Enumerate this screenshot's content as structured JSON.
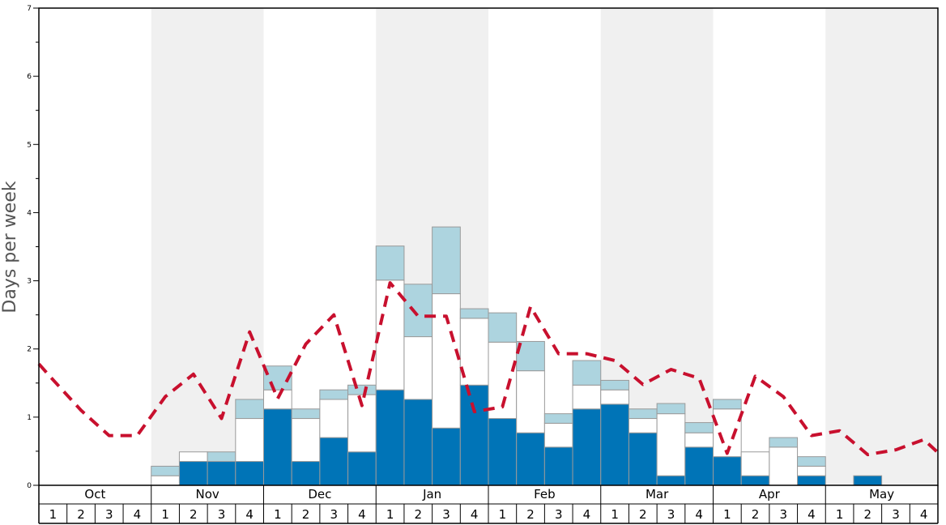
{
  "chart_data": {
    "type": "bar",
    "ylabel": "Days per week",
    "ylim": [
      0,
      7
    ],
    "yticks": [
      "0",
      "1",
      "2",
      "3",
      "4",
      "5",
      "6",
      "7"
    ],
    "months": [
      "Oct",
      "Nov",
      "Dec",
      "Jan",
      "Feb",
      "Mar",
      "Apr",
      "May"
    ],
    "week_labels": [
      "1",
      "2",
      "3",
      "4"
    ],
    "colors": {
      "dark_segment": "#0074b7",
      "white_segment": "#ffffff",
      "light_segment": "#add4df",
      "dashed_line": "#c8102e",
      "band_shade": "#f0f0f0"
    },
    "stacked_bars": [
      {
        "month": "Oct",
        "week": "1",
        "dark": 0,
        "white": 0,
        "light": 0
      },
      {
        "month": "Oct",
        "week": "2",
        "dark": 0,
        "white": 0,
        "light": 0
      },
      {
        "month": "Oct",
        "week": "3",
        "dark": 0,
        "white": 0,
        "light": 0
      },
      {
        "month": "Oct",
        "week": "4",
        "dark": 0,
        "white": 0,
        "light": 0
      },
      {
        "month": "Nov",
        "week": "1",
        "dark": 0,
        "white": 0.14,
        "light": 0.14
      },
      {
        "month": "Nov",
        "week": "2",
        "dark": 0.35,
        "white": 0.14,
        "light": 0
      },
      {
        "month": "Nov",
        "week": "3",
        "dark": 0.35,
        "white": 0,
        "light": 0.14
      },
      {
        "month": "Nov",
        "week": "4",
        "dark": 0.35,
        "white": 0.63,
        "light": 0.28
      },
      {
        "month": "Dec",
        "week": "1",
        "dark": 1.12,
        "white": 0.28,
        "light": 0.35
      },
      {
        "month": "Dec",
        "week": "2",
        "dark": 0.35,
        "white": 0.63,
        "light": 0.14
      },
      {
        "month": "Dec",
        "week": "3",
        "dark": 0.7,
        "white": 0.56,
        "light": 0.14
      },
      {
        "month": "Dec",
        "week": "4",
        "dark": 0.49,
        "white": 0.84,
        "light": 0.14
      },
      {
        "month": "Jan",
        "week": "1",
        "dark": 1.4,
        "white": 1.61,
        "light": 0.5
      },
      {
        "month": "Jan",
        "week": "2",
        "dark": 1.26,
        "white": 0.92,
        "light": 0.77
      },
      {
        "month": "Jan",
        "week": "3",
        "dark": 0.84,
        "white": 1.97,
        "light": 0.98
      },
      {
        "month": "Jan",
        "week": "4",
        "dark": 1.47,
        "white": 0.98,
        "light": 0.14
      },
      {
        "month": "Feb",
        "week": "1",
        "dark": 0.98,
        "white": 1.12,
        "light": 0.43
      },
      {
        "month": "Feb",
        "week": "2",
        "dark": 0.77,
        "white": 0.91,
        "light": 0.43
      },
      {
        "month": "Feb",
        "week": "3",
        "dark": 0.56,
        "white": 0.35,
        "light": 0.14
      },
      {
        "month": "Feb",
        "week": "4",
        "dark": 1.12,
        "white": 0.35,
        "light": 0.36
      },
      {
        "month": "Mar",
        "week": "1",
        "dark": 1.19,
        "white": 0.21,
        "light": 0.14
      },
      {
        "month": "Mar",
        "week": "2",
        "dark": 0.77,
        "white": 0.21,
        "light": 0.14
      },
      {
        "month": "Mar",
        "week": "3",
        "dark": 0.14,
        "white": 0.91,
        "light": 0.15
      },
      {
        "month": "Mar",
        "week": "4",
        "dark": 0.56,
        "white": 0.21,
        "light": 0.15
      },
      {
        "month": "Apr",
        "week": "1",
        "dark": 0.42,
        "white": 0.7,
        "light": 0.14
      },
      {
        "month": "Apr",
        "week": "2",
        "dark": 0.14,
        "white": 0.35,
        "light": 0
      },
      {
        "month": "Apr",
        "week": "3",
        "dark": 0,
        "white": 0.56,
        "light": 0.14
      },
      {
        "month": "Apr",
        "week": "4",
        "dark": 0.14,
        "white": 0.14,
        "light": 0.14
      },
      {
        "month": "May",
        "week": "1",
        "dark": 0,
        "white": 0,
        "light": 0
      },
      {
        "month": "May",
        "week": "2",
        "dark": 0.14,
        "white": 0,
        "light": 0
      },
      {
        "month": "May",
        "week": "3",
        "dark": 0,
        "white": 0,
        "light": 0
      },
      {
        "month": "May",
        "week": "4",
        "dark": 0,
        "white": 0,
        "light": 0
      }
    ],
    "dashed_line": [
      {
        "month": "Oct",
        "week": "0.5",
        "value": 1.78
      },
      {
        "month": "Oct",
        "week": "1",
        "value": 1.55
      },
      {
        "month": "Oct",
        "week": "2",
        "value": 1.1
      },
      {
        "month": "Oct",
        "week": "3",
        "value": 0.73
      },
      {
        "month": "Oct",
        "week": "4",
        "value": 0.73
      },
      {
        "month": "Nov",
        "week": "1",
        "value": 1.3
      },
      {
        "month": "Nov",
        "week": "2",
        "value": 1.63
      },
      {
        "month": "Nov",
        "week": "3",
        "value": 0.98
      },
      {
        "month": "Nov",
        "week": "4",
        "value": 2.25
      },
      {
        "month": "Dec",
        "week": "1",
        "value": 1.27
      },
      {
        "month": "Dec",
        "week": "2",
        "value": 2.07
      },
      {
        "month": "Dec",
        "week": "3",
        "value": 2.5
      },
      {
        "month": "Dec",
        "week": "4",
        "value": 1.17
      },
      {
        "month": "Jan",
        "week": "1",
        "value": 2.97
      },
      {
        "month": "Jan",
        "week": "2",
        "value": 2.48
      },
      {
        "month": "Jan",
        "week": "3",
        "value": 2.48
      },
      {
        "month": "Jan",
        "week": "4",
        "value": 1.08
      },
      {
        "month": "Feb",
        "week": "1",
        "value": 1.15
      },
      {
        "month": "Feb",
        "week": "2",
        "value": 2.62
      },
      {
        "month": "Feb",
        "week": "3",
        "value": 1.93
      },
      {
        "month": "Feb",
        "week": "4",
        "value": 1.93
      },
      {
        "month": "Mar",
        "week": "1",
        "value": 1.83
      },
      {
        "month": "Mar",
        "week": "2",
        "value": 1.48
      },
      {
        "month": "Mar",
        "week": "3",
        "value": 1.7
      },
      {
        "month": "Mar",
        "week": "4",
        "value": 1.57
      },
      {
        "month": "Apr",
        "week": "1",
        "value": 0.47
      },
      {
        "month": "Apr",
        "week": "2",
        "value": 1.6
      },
      {
        "month": "Apr",
        "week": "3",
        "value": 1.3
      },
      {
        "month": "Apr",
        "week": "4",
        "value": 0.73
      },
      {
        "month": "May",
        "week": "1",
        "value": 0.8
      },
      {
        "month": "May",
        "week": "2",
        "value": 0.45
      },
      {
        "month": "May",
        "week": "3",
        "value": 0.52
      },
      {
        "month": "May",
        "week": "4",
        "value": 0.67
      },
      {
        "month": "May",
        "week": "4.5",
        "value": 0.48
      }
    ]
  }
}
